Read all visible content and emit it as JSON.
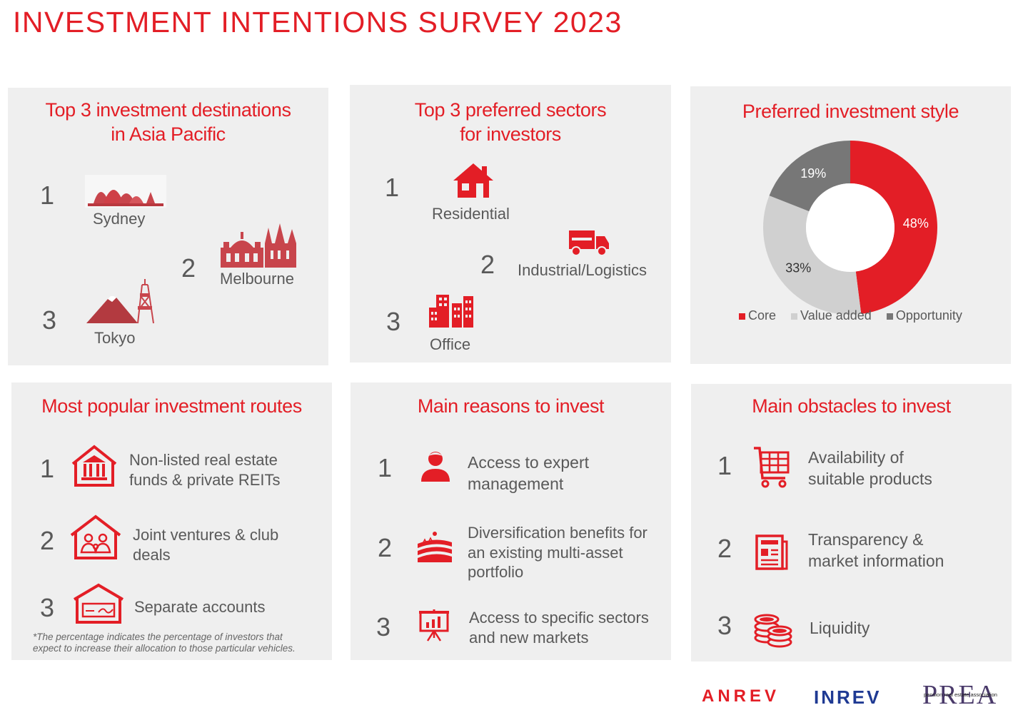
{
  "title": "INVESTMENT INTENTIONS SURVEY 2023",
  "colors": {
    "accent": "#e31e26",
    "panel": "#efefef",
    "text": "#595959",
    "value_added": "#d0d0d0",
    "opportunity": "#777777"
  },
  "destinations": {
    "title": "Top 3 investment destinations\nin Asia Pacific",
    "items": [
      {
        "rank": "1",
        "label": "Sydney",
        "icon": "sydney-opera-house-icon"
      },
      {
        "rank": "2",
        "label": "Melbourne",
        "icon": "melbourne-skyline-icon"
      },
      {
        "rank": "3",
        "label": "Tokyo",
        "icon": "tokyo-tower-icon"
      }
    ]
  },
  "sectors": {
    "title": "Top 3 preferred sectors\nfor investors",
    "items": [
      {
        "rank": "1",
        "label": "Residential",
        "icon": "house-icon"
      },
      {
        "rank": "2",
        "label": "Industrial/Logistics",
        "icon": "truck-icon"
      },
      {
        "rank": "3",
        "label": "Office",
        "icon": "office-buildings-icon"
      }
    ]
  },
  "style": {
    "title": "Preferred investment style",
    "legend": [
      "Core",
      "Value added",
      "Opportunity"
    ]
  },
  "chart_data": {
    "type": "pie",
    "title": "Preferred investment style",
    "categories": [
      "Core",
      "Value added",
      "Opportunity"
    ],
    "values": [
      48,
      33,
      19
    ],
    "labels": [
      "48%",
      "33%",
      "19%"
    ],
    "colors": [
      "#e31e26",
      "#d0d0d0",
      "#777777"
    ],
    "legend": "bottom"
  },
  "routes": {
    "title": "Most popular investment routes",
    "items": [
      {
        "rank": "1",
        "line1": "Non-listed real estate",
        "line2": "funds & private REITs",
        "icon": "bank-building-icon"
      },
      {
        "rank": "2",
        "line1": "Joint ventures & club",
        "line2": "deals",
        "icon": "people-house-icon"
      },
      {
        "rank": "3",
        "line1": "Separate accounts",
        "line2": "",
        "icon": "cheque-house-icon"
      }
    ],
    "footnote1": "*The percentage indicates the percentage of investors that",
    "footnote2": "expect to increase their allocation to those particular vehicles."
  },
  "reasons": {
    "title": "Main reasons to invest",
    "items": [
      {
        "rank": "1",
        "line1": "Access to expert",
        "line2": "management",
        "line3": "",
        "icon": "expert-person-icon"
      },
      {
        "rank": "2",
        "line1": "Diversification benefits for",
        "line2": "an existing multi-asset",
        "line3": "portfolio",
        "icon": "landscape-fields-icon"
      },
      {
        "rank": "3",
        "line1": "Access to specific sectors",
        "line2": "and new markets",
        "line3": "",
        "icon": "presentation-chart-icon"
      }
    ]
  },
  "obstacles": {
    "title": "Main obstacles to invest",
    "items": [
      {
        "rank": "1",
        "line1": "Availability of",
        "line2": "suitable products",
        "icon": "shopping-cart-icon"
      },
      {
        "rank": "2",
        "line1": "Transparency &",
        "line2": "market information",
        "icon": "newspaper-icon"
      },
      {
        "rank": "3",
        "line1": "Liquidity",
        "line2": "",
        "icon": "coins-icon"
      }
    ]
  },
  "logos": {
    "anrev": "ANREV",
    "inrev": "INREV",
    "prea": "PREA",
    "prea_sub": "pension real estate association"
  }
}
